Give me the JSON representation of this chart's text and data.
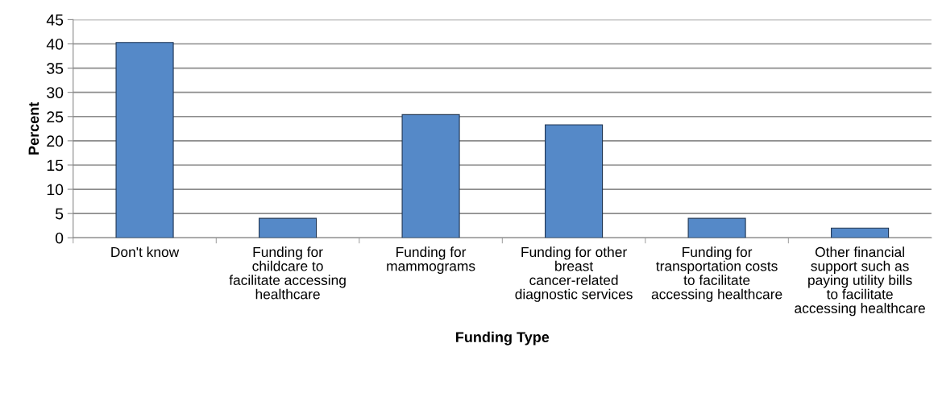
{
  "chart_data": {
    "type": "bar",
    "xlabel": "Funding Type",
    "ylabel": "Percent",
    "categories": [
      "Don't know",
      "Funding for childcare to facilitate accessing healthcare",
      "Funding for mammograms",
      "Funding for other breast cancer-related diagnostic services",
      "Funding for transportation costs to facilitate accessing healthcare",
      "Other financial support such as paying utility bills to facilitate accessing healthcare"
    ],
    "values": [
      40.3,
      4.0,
      25.4,
      23.3,
      4.0,
      2.0
    ],
    "color": "#5589c8",
    "ylim": [
      0,
      45
    ],
    "yticks": [
      0,
      5,
      10,
      15,
      20,
      25,
      30,
      35,
      40,
      45
    ],
    "grid": "y"
  }
}
